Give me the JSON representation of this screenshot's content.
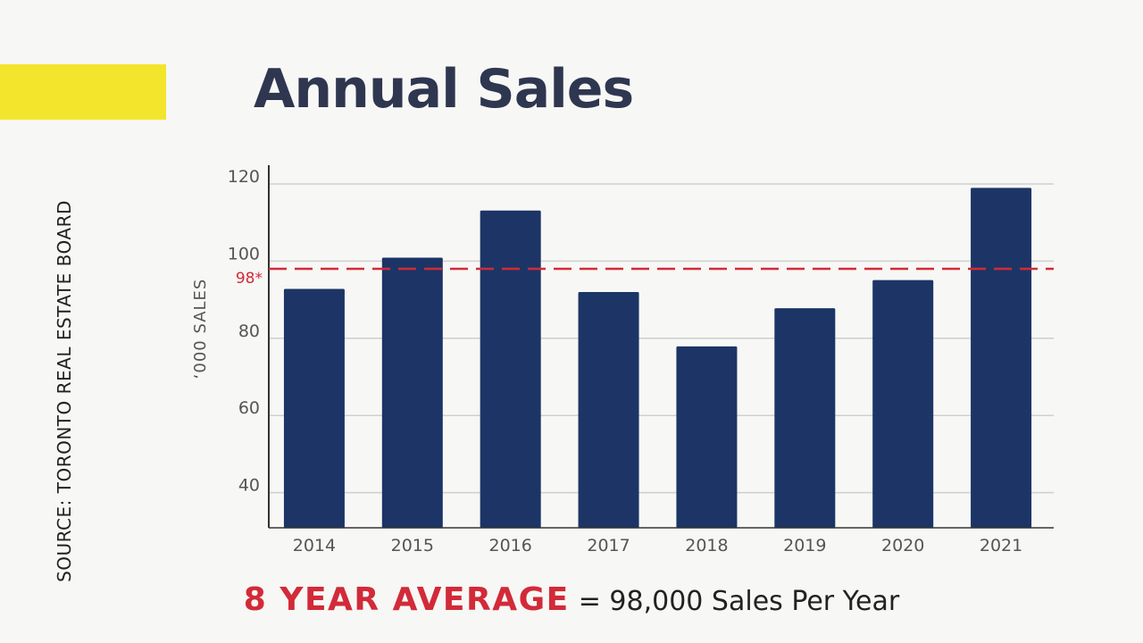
{
  "title": "Annual Sales",
  "source_label": "SOURCE: TORONTO REAL ESTATE BOARD",
  "footer": {
    "highlight": "8 YEAR AVERAGE",
    "rest": "= 98,000 Sales Per Year"
  },
  "colors": {
    "accent": "#f3e52b",
    "title": "#2f3650",
    "bar": "#1c3566",
    "average": "#d22a38",
    "text": "#222222",
    "axis_text": "#555555",
    "grid": "#cfcfcf",
    "axis": "#333333"
  },
  "chart_data": {
    "type": "bar",
    "categories": [
      "2014",
      "2015",
      "2016",
      "2017",
      "2018",
      "2019",
      "2020",
      "2021"
    ],
    "values": [
      92.8,
      100.9,
      113.1,
      92.0,
      77.9,
      87.8,
      95.1,
      119.0
    ],
    "title": "",
    "xlabel": "",
    "ylabel": "‘000 SALES",
    "ylim": [
      30,
      125
    ],
    "yticks": [
      40,
      60,
      80,
      100,
      120
    ],
    "grid": true,
    "reference_line": {
      "value": 98,
      "label": "98*",
      "style": "dashed"
    }
  }
}
